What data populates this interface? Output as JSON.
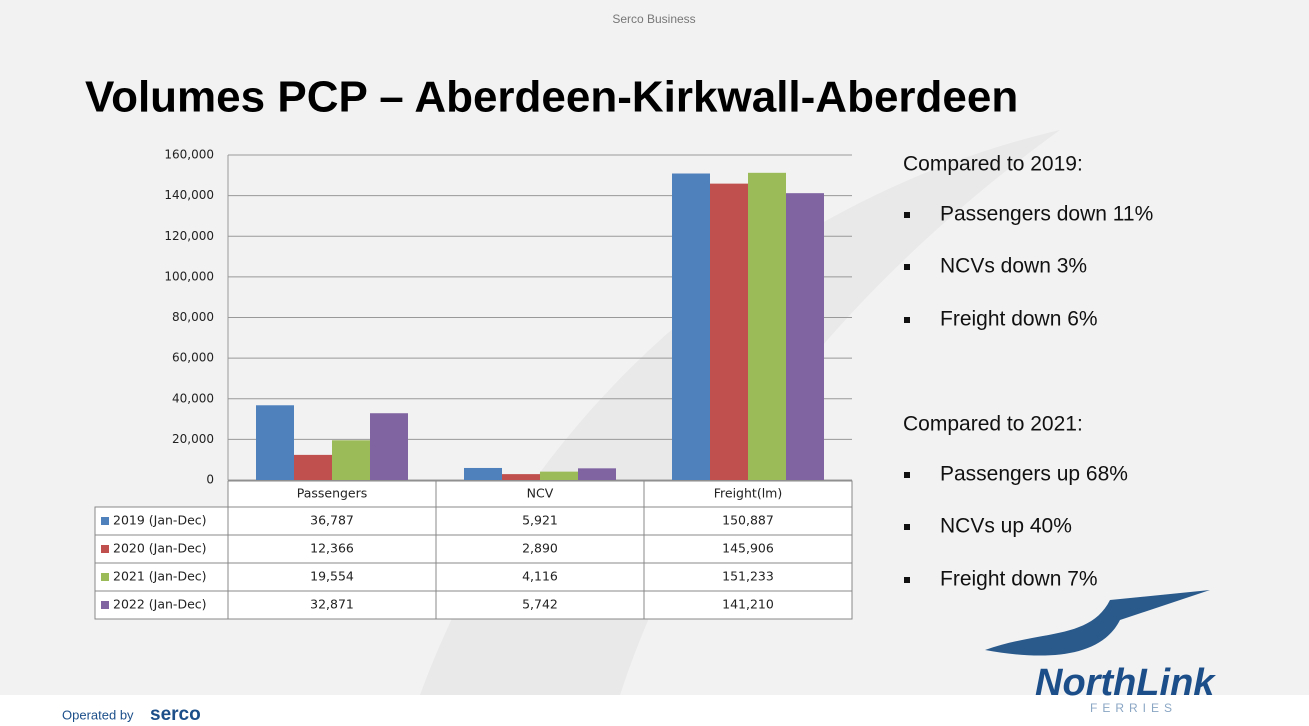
{
  "header": "Serco Business",
  "title": "Volumes PCP – Aberdeen-Kirkwall-Aberdeen",
  "chart_data": {
    "type": "bar",
    "categories": [
      "Passengers",
      "NCV",
      "Freight(lm)"
    ],
    "series": [
      {
        "name": "2019 (Jan-Dec)",
        "color": "#4f81bd",
        "values": [
          36787,
          5921,
          150887
        ],
        "value_labels": [
          "36,787",
          "5,921",
          "150,887"
        ]
      },
      {
        "name": "2020 (Jan-Dec)",
        "color": "#c0504d",
        "values": [
          12366,
          2890,
          145906
        ],
        "value_labels": [
          "12,366",
          "2,890",
          "145,906"
        ]
      },
      {
        "name": "2021 (Jan-Dec)",
        "color": "#9bbb59",
        "values": [
          19554,
          4116,
          151233
        ],
        "value_labels": [
          "19,554",
          "4,116",
          "151,233"
        ]
      },
      {
        "name": "2022 (Jan-Dec)",
        "color": "#8064a2",
        "values": [
          32871,
          5742,
          141210
        ],
        "value_labels": [
          "32,871",
          "5,742",
          "141,210"
        ]
      }
    ],
    "ylim": [
      0,
      160000
    ],
    "yticks": [
      0,
      {
        "value": 20000,
        "label": "20,000"
      },
      {
        "value": 40000,
        "label": "40,000"
      },
      {
        "value": 60000,
        "label": "60,000"
      },
      {
        "value": 80000,
        "label": "80,000"
      },
      {
        "value": 100000,
        "label": "100,000"
      },
      {
        "value": 120000,
        "label": "120,000"
      },
      {
        "value": 140000,
        "label": "140,000"
      },
      {
        "value": 160000,
        "label": "160,000"
      }
    ],
    "grid": true
  },
  "notes": [
    {
      "heading": "Compared to 2019:",
      "items": [
        "Passengers down 11%",
        "NCVs down 3%",
        "Freight down 6%"
      ]
    },
    {
      "heading": "Compared to 2021:",
      "items": [
        "Passengers up 68%",
        "NCVs up 40%",
        "Freight down 7%"
      ]
    }
  ],
  "footer": {
    "operated": "Operated by",
    "company": "serco"
  },
  "logo": {
    "name": "NorthLink",
    "sub": "FERRIES"
  }
}
